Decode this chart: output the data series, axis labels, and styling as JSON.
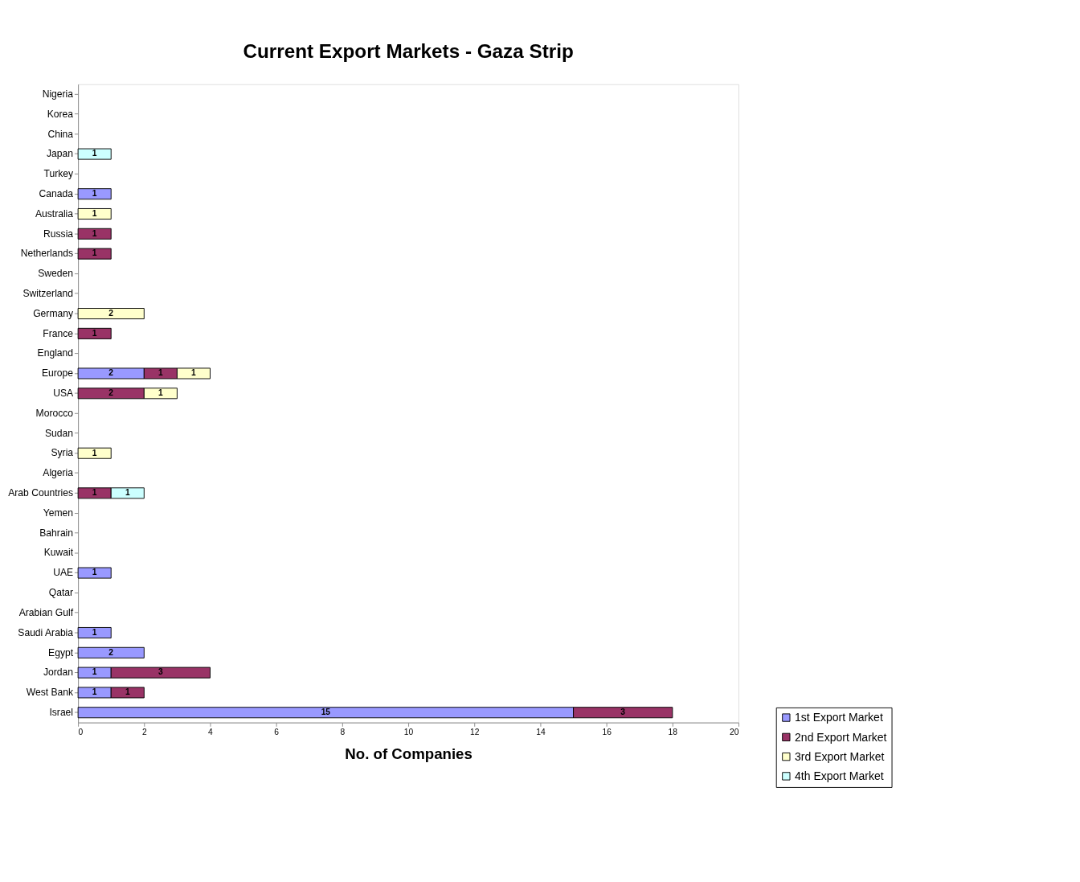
{
  "chart_data": {
    "type": "bar",
    "orientation": "horizontal",
    "stacked": true,
    "title": "Current Export Markets - Gaza Strip",
    "xlabel": "No. of Companies",
    "categories": [
      "Nigeria",
      "Korea",
      "China",
      "Japan",
      "Turkey",
      "Canada",
      "Australia",
      "Russia",
      "Netherlands",
      "Sweden",
      "Switzerland",
      "Germany",
      "France",
      "England",
      "Europe",
      "USA",
      "Morocco",
      "Sudan",
      "Syria",
      "Algeria",
      "Arab Countries",
      "Yemen",
      "Bahrain",
      "Kuwait",
      "UAE",
      "Qatar",
      "Arabian Gulf",
      "Saudi Arabia",
      "Egypt",
      "Jordan",
      "West Bank",
      "Israel"
    ],
    "series": [
      {
        "name": "1st Export Market",
        "color": "#9999ff",
        "values": [
          null,
          null,
          null,
          null,
          null,
          1,
          null,
          null,
          null,
          null,
          null,
          null,
          null,
          null,
          2,
          null,
          null,
          null,
          null,
          null,
          null,
          null,
          null,
          null,
          1,
          null,
          null,
          1,
          2,
          1,
          1,
          15
        ]
      },
      {
        "name": "2nd Export Market",
        "color": "#993366",
        "values": [
          null,
          null,
          null,
          null,
          null,
          null,
          null,
          1,
          1,
          null,
          null,
          null,
          1,
          null,
          1,
          2,
          null,
          null,
          null,
          null,
          1,
          null,
          null,
          null,
          null,
          null,
          null,
          null,
          null,
          3,
          1,
          3
        ]
      },
      {
        "name": "3rd Export Market",
        "color": "#ffffcc",
        "values": [
          null,
          null,
          null,
          null,
          null,
          null,
          1,
          null,
          null,
          null,
          null,
          2,
          null,
          null,
          1,
          1,
          null,
          null,
          1,
          null,
          null,
          null,
          null,
          null,
          null,
          null,
          null,
          null,
          null,
          null,
          null,
          null
        ]
      },
      {
        "name": "4th Export Market",
        "color": "#ccffff",
        "values": [
          null,
          null,
          null,
          1,
          null,
          null,
          null,
          null,
          null,
          null,
          null,
          null,
          null,
          null,
          null,
          null,
          null,
          null,
          null,
          null,
          1,
          null,
          null,
          null,
          null,
          null,
          null,
          null,
          null,
          null,
          null,
          null
        ]
      }
    ],
    "xlim": [
      0,
      20
    ],
    "xticks": [
      0,
      2,
      4,
      6,
      8,
      10,
      12,
      14,
      16,
      18,
      20
    ],
    "grid": false,
    "legend": "bottom right",
    "data_labels": true
  }
}
